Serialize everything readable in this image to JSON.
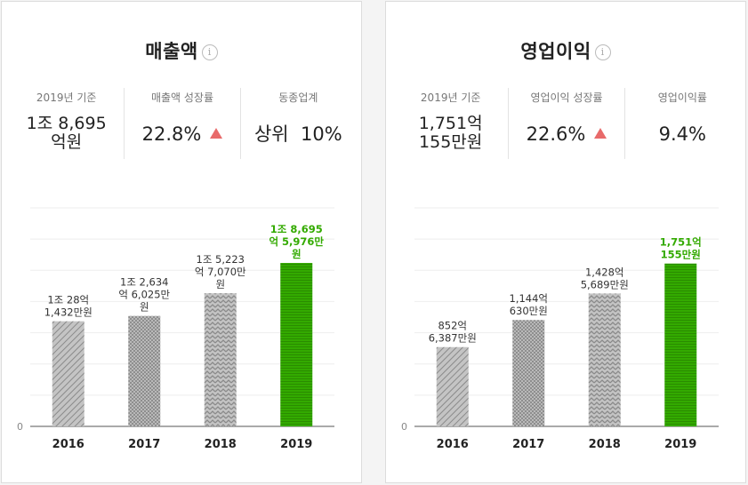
{
  "revenue": {
    "title": "매출액",
    "info_icon": "i",
    "stats": [
      {
        "label": "2019년 기준",
        "value_lines": [
          "1조 8,695",
          "억원"
        ]
      },
      {
        "label": "매출액 성장률",
        "value": "22.8%",
        "trend": "up"
      },
      {
        "label": "동종업계",
        "value": "상위  10%"
      }
    ]
  },
  "profit": {
    "title": "영업이익",
    "info_icon": "i",
    "stats": [
      {
        "label": "2019년 기준",
        "value_lines": [
          "1,751억",
          "155만원"
        ]
      },
      {
        "label": "영업이익 성장률",
        "value": "22.6%",
        "trend": "up"
      },
      {
        "label": "영업이익률",
        "value": "9.4%"
      }
    ]
  },
  "colors": {
    "highlight": "#33aa00",
    "bar_gray": "#a9a9a9",
    "trend_up": "#e86a6a"
  },
  "chart_data": [
    {
      "type": "bar",
      "categories": [
        "2016",
        "2017",
        "2018",
        "2019"
      ],
      "values": [
        12028.14,
        12634.6,
        15223.7,
        18695.6
      ],
      "value_unit": "억원",
      "data_labels": [
        [
          "1조 28억",
          "1,432만원"
        ],
        [
          "1조 2,634",
          "억 6,025만",
          "원"
        ],
        [
          "1조 5,223",
          "억 7,070만",
          "원"
        ],
        [
          "1조 8,695",
          "억 5,976만",
          "원"
        ]
      ],
      "ytick_labels": [
        "0"
      ],
      "ylim": [
        0,
        25000
      ],
      "grid": true,
      "highlight_index": 3,
      "patterns": [
        "diagonal",
        "dots",
        "zigzag",
        "horizontal"
      ]
    },
    {
      "type": "bar",
      "categories": [
        "2016",
        "2017",
        "2018",
        "2019"
      ],
      "values": [
        852.64,
        1144.06,
        1428.57,
        1751.02
      ],
      "value_unit": "억원",
      "data_labels": [
        [
          "852억",
          "6,387만원"
        ],
        [
          "1,144억",
          "630만원"
        ],
        [
          "1,428억",
          "5,689만원"
        ],
        [
          "1,751억",
          "155만원"
        ]
      ],
      "ytick_labels": [
        "0"
      ],
      "ylim": [
        0,
        2350
      ],
      "grid": true,
      "highlight_index": 3,
      "patterns": [
        "diagonal",
        "dots",
        "zigzag",
        "horizontal"
      ]
    }
  ]
}
